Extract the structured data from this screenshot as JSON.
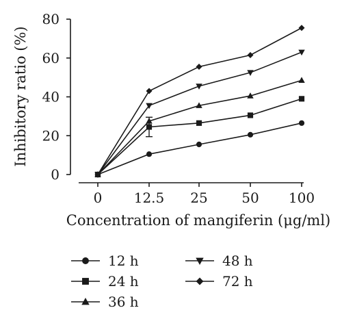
{
  "chart_data": {
    "type": "line",
    "xlabel": "Concentration of mangiferin (μg/ml)",
    "ylabel": "Inhibitory ratio (%)",
    "categories": [
      "0",
      "12.5",
      "25",
      "50",
      "100"
    ],
    "y_ticks": [
      "0",
      "20",
      "40",
      "60",
      "80"
    ],
    "ylim": [
      0,
      80
    ],
    "grid": false,
    "legend_position": "bottom",
    "series": [
      {
        "name": "12 h",
        "marker": "circle",
        "values": [
          0,
          10.5,
          15.5,
          20.5,
          26.5
        ]
      },
      {
        "name": "24 h",
        "marker": "square",
        "values": [
          0,
          24.5,
          26.5,
          30.5,
          39
        ],
        "error_bars": [
          0,
          5,
          0,
          0,
          0
        ]
      },
      {
        "name": "36 h",
        "marker": "triangle-up",
        "values": [
          0,
          27.5,
          35.5,
          40.5,
          48.5
        ]
      },
      {
        "name": "48 h",
        "marker": "triangle-down",
        "values": [
          0,
          35.5,
          45.5,
          52.5,
          63
        ]
      },
      {
        "name": "72 h",
        "marker": "diamond",
        "values": [
          0,
          43,
          55.5,
          61.5,
          75.5
        ]
      }
    ],
    "color": "#1a1a1a"
  }
}
